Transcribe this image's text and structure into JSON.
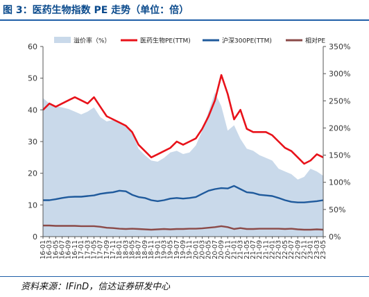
{
  "figure": {
    "title": "图 3：医药生物指数 PE 走势（单位：倍）",
    "source": "资料来源：IFinD，信达证券研发中心"
  },
  "chart_data": {
    "type": "line",
    "x_categories": [
      "16/01",
      "16/03",
      "16/05",
      "16/07",
      "16/09",
      "16/11",
      "17/01",
      "17/03",
      "17/05",
      "17/07",
      "17/09",
      "17/11",
      "18/01",
      "18/03",
      "18/05",
      "18/07",
      "18/09",
      "18/11",
      "19/01",
      "19/03",
      "19/05",
      "19/07",
      "19/09",
      "19/11",
      "20/01",
      "20/03",
      "20/05",
      "20/07",
      "20/09",
      "20/11",
      "21/01",
      "21/03",
      "21/05",
      "21/07",
      "21/09",
      "21/11",
      "22/01",
      "22/03",
      "22/05",
      "22/07",
      "22/09",
      "22/11",
      "23/01",
      "23/03",
      "23/05"
    ],
    "x_tick_labels": [
      "16-01",
      "16-03",
      "16-05",
      "16-07",
      "16-09",
      "16-11",
      "17-01",
      "17-03",
      "17-05",
      "17-07",
      "17-09",
      "17-11",
      "18-01",
      "18-03",
      "18-05",
      "18-07",
      "18-09",
      "18-11",
      "19-01",
      "19-03",
      "19-05",
      "19-07",
      "19-09",
      "19-11",
      "20-01",
      "20-03",
      "20-05",
      "20-07",
      "20-09",
      "20-11",
      "21-01",
      "21-03",
      "21-05",
      "21-07",
      "21-09",
      "21-11",
      "22-01",
      "22-03",
      "22-05",
      "22-07",
      "22-09",
      "22-11",
      "23-01",
      "23-03",
      "23-05"
    ],
    "y_left": {
      "ticks": [
        0,
        10,
        20,
        30,
        40,
        50,
        60
      ],
      "range": [
        0,
        60
      ]
    },
    "y_right": {
      "ticks": [
        "0%",
        "50%",
        "100%",
        "150%",
        "200%",
        "250%",
        "300%",
        "350%"
      ],
      "range": [
        0,
        3.5
      ]
    },
    "series": [
      {
        "name": "溢价率（%）",
        "type": "area",
        "axis": "right",
        "color": "#c9d9ea",
        "values": [
          2.55,
          2.45,
          2.4,
          2.38,
          2.35,
          2.3,
          2.25,
          2.3,
          2.38,
          2.2,
          2.12,
          2.15,
          2.08,
          2.02,
          1.92,
          1.62,
          1.5,
          1.4,
          1.38,
          1.45,
          1.55,
          1.58,
          1.52,
          1.55,
          1.68,
          1.95,
          2.3,
          2.65,
          2.4,
          1.95,
          2.05,
          1.8,
          1.62,
          1.58,
          1.5,
          1.45,
          1.4,
          1.25,
          1.2,
          1.15,
          1.05,
          1.1,
          1.25,
          1.2,
          1.12
        ]
      },
      {
        "name": "医药生物PE(TTM)",
        "type": "line",
        "axis": "left",
        "color": "#e8121a",
        "values": [
          40,
          42,
          41,
          42,
          43,
          44,
          43,
          42,
          44,
          41,
          38,
          37,
          36,
          35,
          33,
          29,
          27,
          25,
          26,
          27,
          28,
          30,
          29,
          30,
          31,
          34,
          38,
          43,
          51,
          45,
          37,
          40,
          34,
          33,
          33,
          33,
          32,
          30,
          28,
          27,
          25,
          23,
          24,
          26,
          25
        ]
      },
      {
        "name": "沪深300PE(TTM)",
        "type": "line",
        "axis": "left",
        "color": "#1f5a9c",
        "values": [
          11.5,
          11.5,
          11.8,
          12.2,
          12.5,
          12.6,
          12.6,
          12.8,
          13.0,
          13.5,
          13.8,
          14.0,
          14.5,
          14.3,
          13.2,
          12.5,
          12.2,
          11.5,
          11.2,
          11.5,
          12.0,
          12.2,
          12.0,
          12.2,
          12.5,
          13.5,
          14.5,
          15.0,
          15.3,
          15.2,
          16.0,
          15.0,
          14.0,
          13.8,
          13.2,
          13.0,
          12.8,
          12.2,
          11.5,
          11.0,
          10.8,
          10.8,
          11.0,
          11.2,
          11.5
        ]
      },
      {
        "name": "相对PE",
        "type": "line",
        "axis": "left",
        "color": "#8b4a48",
        "values": [
          3.5,
          3.5,
          3.4,
          3.4,
          3.4,
          3.4,
          3.3,
          3.3,
          3.3,
          3.1,
          2.8,
          2.7,
          2.5,
          2.4,
          2.5,
          2.4,
          2.3,
          2.2,
          2.3,
          2.4,
          2.3,
          2.4,
          2.4,
          2.5,
          2.5,
          2.6,
          2.8,
          3.0,
          3.3,
          3.0,
          2.4,
          2.7,
          2.4,
          2.4,
          2.5,
          2.5,
          2.5,
          2.5,
          2.4,
          2.5,
          2.3,
          2.2,
          2.2,
          2.3,
          2.2
        ]
      }
    ]
  }
}
